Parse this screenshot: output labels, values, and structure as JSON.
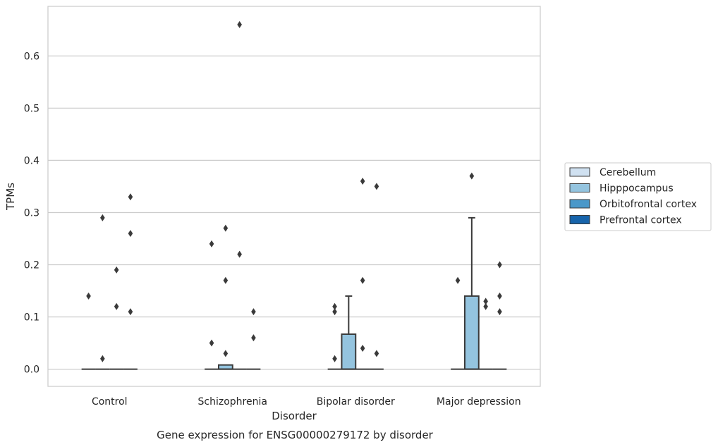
{
  "chart_data": {
    "type": "box",
    "title": "",
    "caption": "Gene expression for ENSG00000279172 by disorder",
    "xlabel": "Disorder",
    "ylabel": "TPMs",
    "ylim": [
      -0.033,
      0.695
    ],
    "yticks": [
      "0.0",
      "0.1",
      "0.2",
      "0.3",
      "0.4",
      "0.5",
      "0.6"
    ],
    "grid": "horizontal",
    "legend_position": "right",
    "categories": [
      "Control",
      "Schizophrenia",
      "Bipolar disorder",
      "Major depression"
    ],
    "series": [
      {
        "name": "Cerebellum",
        "color": "#d0e1f1"
      },
      {
        "name": "Hipppocampus",
        "color": "#94c4df"
      },
      {
        "name": "Orbitofrontal cortex",
        "color": "#4a98c9"
      },
      {
        "name": "Prefrontal cortex",
        "color": "#1764ab"
      }
    ],
    "boxes": [
      {
        "category": "Control",
        "series": "Cerebellum",
        "q1": 0,
        "median": 0,
        "q3": 0,
        "whisker_low": 0,
        "whisker_high": 0,
        "outliers": [
          0.14
        ]
      },
      {
        "category": "Control",
        "series": "Hipppocampus",
        "q1": 0,
        "median": 0,
        "q3": 0,
        "whisker_low": 0,
        "whisker_high": 0,
        "outliers": [
          0.02,
          0.29
        ]
      },
      {
        "category": "Control",
        "series": "Orbitofrontal cortex",
        "q1": 0,
        "median": 0,
        "q3": 0,
        "whisker_low": 0,
        "whisker_high": 0,
        "outliers": [
          0.12,
          0.19
        ]
      },
      {
        "category": "Control",
        "series": "Prefrontal cortex",
        "q1": 0,
        "median": 0,
        "q3": 0,
        "whisker_low": 0,
        "whisker_high": 0,
        "outliers": [
          0.11,
          0.26,
          0.33
        ]
      },
      {
        "category": "Schizophrenia",
        "series": "Cerebellum",
        "q1": 0,
        "median": 0,
        "q3": 0,
        "whisker_low": 0,
        "whisker_high": 0,
        "outliers": [
          0.05,
          0.24
        ]
      },
      {
        "category": "Schizophrenia",
        "series": "Hipppocampus",
        "q1": 0,
        "median": 0,
        "q3": 0.008,
        "whisker_low": 0,
        "whisker_high": 0.008,
        "outliers": [
          0.03,
          0.17,
          0.27
        ]
      },
      {
        "category": "Schizophrenia",
        "series": "Orbitofrontal cortex",
        "q1": 0,
        "median": 0,
        "q3": 0,
        "whisker_low": 0,
        "whisker_high": 0,
        "outliers": [
          0.22,
          0.66
        ]
      },
      {
        "category": "Schizophrenia",
        "series": "Prefrontal cortex",
        "q1": 0,
        "median": 0,
        "q3": 0,
        "whisker_low": 0,
        "whisker_high": 0,
        "outliers": [
          0.06,
          0.11
        ]
      },
      {
        "category": "Bipolar disorder",
        "series": "Cerebellum",
        "q1": 0,
        "median": 0,
        "q3": 0,
        "whisker_low": 0,
        "whisker_high": 0,
        "outliers": [
          0.02,
          0.11,
          0.12
        ]
      },
      {
        "category": "Bipolar disorder",
        "series": "Hipppocampus",
        "q1": 0,
        "median": 0,
        "q3": 0.067,
        "whisker_low": 0,
        "whisker_high": 0.14,
        "outliers": []
      },
      {
        "category": "Bipolar disorder",
        "series": "Orbitofrontal cortex",
        "q1": 0,
        "median": 0,
        "q3": 0,
        "whisker_low": 0,
        "whisker_high": 0,
        "outliers": [
          0.04,
          0.17,
          0.36
        ]
      },
      {
        "category": "Bipolar disorder",
        "series": "Prefrontal cortex",
        "q1": 0,
        "median": 0,
        "q3": 0,
        "whisker_low": 0,
        "whisker_high": 0,
        "outliers": [
          0.03,
          0.35
        ]
      },
      {
        "category": "Major depression",
        "series": "Cerebellum",
        "q1": 0,
        "median": 0,
        "q3": 0,
        "whisker_low": 0,
        "whisker_high": 0,
        "outliers": [
          0.17
        ]
      },
      {
        "category": "Major depression",
        "series": "Hipppocampus",
        "q1": 0,
        "median": 0,
        "q3": 0.14,
        "whisker_low": 0,
        "whisker_high": 0.29,
        "outliers": [
          0.37
        ]
      },
      {
        "category": "Major depression",
        "series": "Orbitofrontal cortex",
        "q1": 0,
        "median": 0,
        "q3": 0,
        "whisker_low": 0,
        "whisker_high": 0,
        "outliers": [
          0.12,
          0.13
        ]
      },
      {
        "category": "Major depression",
        "series": "Prefrontal cortex",
        "q1": 0,
        "median": 0,
        "q3": 0,
        "whisker_low": 0,
        "whisker_high": 0,
        "outliers": [
          0.11,
          0.14,
          0.2
        ]
      }
    ]
  }
}
